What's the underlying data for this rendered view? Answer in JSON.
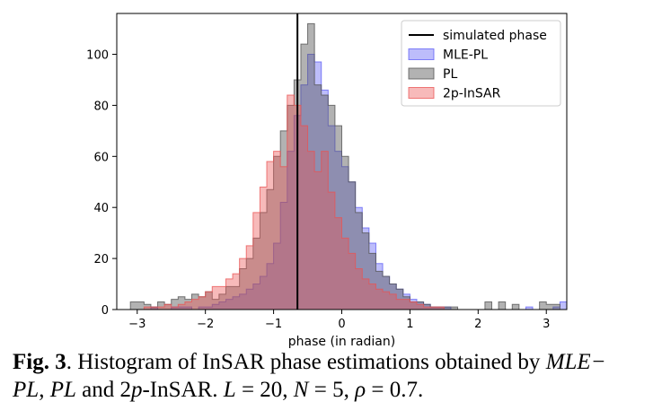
{
  "chart_data": {
    "type": "histogram",
    "xlabel": "phase (in radian)",
    "ylabel": "",
    "xlim": [
      -3.3,
      3.3
    ],
    "ylim": [
      0,
      116
    ],
    "xticks": [
      -3,
      -2,
      -1,
      0,
      1,
      2,
      3
    ],
    "xtick_labels": [
      "−3",
      "−2",
      "−1",
      "0",
      "1",
      "2",
      "3"
    ],
    "yticks": [
      0,
      20,
      40,
      60,
      80,
      100
    ],
    "ytick_labels": [
      "0",
      "20",
      "40",
      "60",
      "80",
      "100"
    ],
    "bin_start": -3.1,
    "bin_width": 0.1,
    "reference_line": {
      "name": "simulated phase",
      "x": -0.65,
      "color": "#000000"
    },
    "legend_position": "upper right",
    "series": [
      {
        "name": "MLE-PL",
        "color": "#5b5bf5",
        "alpha": 0.4,
        "values": [
          0,
          0,
          0,
          1,
          0,
          0,
          1,
          1,
          1,
          0,
          1,
          1,
          2,
          3,
          4,
          5,
          6,
          8,
          10,
          13,
          18,
          26,
          42,
          62,
          76,
          88,
          100,
          97,
          86,
          72,
          62,
          56,
          50,
          40,
          32,
          26,
          18,
          13,
          10,
          8,
          6,
          4,
          3,
          2,
          1,
          1,
          1,
          0,
          0,
          0,
          0,
          0,
          0,
          0,
          0,
          0,
          0,
          0,
          1,
          0,
          0,
          0,
          1,
          3,
          1,
          0,
          0
        ]
      },
      {
        "name": "PL",
        "color": "#555555",
        "alpha": 0.45,
        "values": [
          3,
          3,
          2,
          1,
          3,
          2,
          4,
          5,
          4,
          6,
          5,
          7,
          4,
          6,
          9,
          9,
          16,
          20,
          28,
          38,
          47,
          60,
          70,
          80,
          90,
          104,
          112,
          88,
          84,
          80,
          72,
          60,
          50,
          38,
          30,
          22,
          15,
          13,
          10,
          8,
          5,
          3,
          3,
          2,
          1,
          1,
          1,
          1,
          0,
          0,
          0,
          0,
          3,
          0,
          3,
          0,
          2,
          0,
          0,
          0,
          3,
          2,
          2,
          0,
          0,
          0,
          0
        ]
      },
      {
        "name": "2p-InSAR",
        "color": "#ea5252",
        "alpha": 0.4,
        "values": [
          0,
          0,
          1,
          1,
          1,
          2,
          1,
          2,
          3,
          4,
          5,
          7,
          9,
          9,
          12,
          14,
          20,
          25,
          38,
          48,
          58,
          62,
          56,
          84,
          80,
          72,
          62,
          54,
          62,
          46,
          36,
          28,
          22,
          16,
          12,
          10,
          8,
          7,
          6,
          4,
          4,
          3,
          2,
          1,
          1,
          1,
          0,
          0,
          0,
          0,
          0,
          0,
          0,
          0,
          0,
          0,
          0,
          0,
          0,
          0,
          0,
          0,
          0,
          0,
          0,
          0,
          0
        ]
      }
    ]
  },
  "caption": {
    "fig_label": "Fig. 3",
    "line1_text": ". Histogram of InSAR phase estimations obtained by ",
    "line1_math": "MLE−",
    "line2_math_a": "PL",
    "line2_text_a": ", ",
    "line2_math_b": "PL",
    "line2_text_b": " and 2",
    "line2_math_c": "p",
    "line2_text_c": "-InSAR. ",
    "line2_math_d": "L",
    "line2_text_d": " = 20, ",
    "line2_math_e": "N",
    "line2_text_e": " = 5, ",
    "line2_math_f": "ρ",
    "line2_text_f": " = 0.7."
  }
}
